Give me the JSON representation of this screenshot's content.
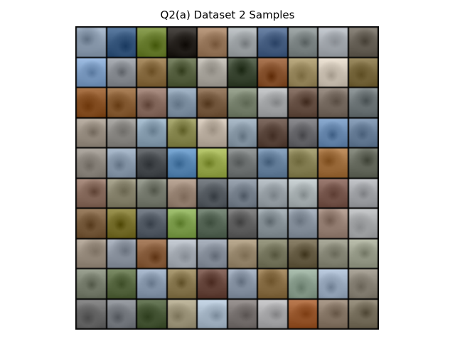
{
  "figure": {
    "title": "Q2(a) Dataset 2 Samples"
  },
  "grid": {
    "rows": 10,
    "cols": 10,
    "tiles": [
      [
        "#8d9db0",
        "#3a5a80",
        "#6b7f32",
        "#2a2622",
        "#9a7a5e",
        "#a0a5a8",
        "#4a6285",
        "#808888",
        "#a5aab0",
        "#6a645a"
      ],
      [
        "#7d9cc2",
        "#8a8e94",
        "#8a6e44",
        "#5a6444",
        "#aaa69e",
        "#3e4a36",
        "#8a5632",
        "#9a8a60",
        "#ccc2b4",
        "#7a6a40"
      ],
      [
        "#8a5428",
        "#8a6038",
        "#8a6e62",
        "#8294a6",
        "#7a5e44",
        "#7a8470",
        "#a6a8aa",
        "#6a5448",
        "#7a6e64",
        "#70787a"
      ],
      [
        "#9a9084",
        "#8c8a86",
        "#8aa0b2",
        "#8a8a52",
        "#bcb0a2",
        "#8a9aa8",
        "#5e4a40",
        "#6a6a6e",
        "#6a8ab0",
        "#6a809a"
      ],
      [
        "#8e8880",
        "#8a9aac",
        "#4a4e52",
        "#5a88b4",
        "#98a84e",
        "#747878",
        "#6a84a0",
        "#8a8458",
        "#a07040",
        "#6a6e62"
      ],
      [
        "#8a6e60",
        "#8a8670",
        "#7a7e72",
        "#9a8676",
        "#5a6066",
        "#7a8490",
        "#9aa2a8",
        "#aab2b4",
        "#7a5a50",
        "#a2a4a8"
      ],
      [
        "#7a5e40",
        "#7a7230",
        "#58606a",
        "#80a050",
        "#5a6a5a",
        "#646464",
        "#8a949a",
        "#8a94a0",
        "#9a8478",
        "#a6a8aa"
      ],
      [
        "#9a8e80",
        "#8e96a2",
        "#8a6040",
        "#a6acb4",
        "#8a929e",
        "#9a8a70",
        "#7a7a62",
        "#6a6048",
        "#8a8a7a",
        "#9a9e8c"
      ],
      [
        "#7a8070",
        "#5a6a44",
        "#8a9aae",
        "#8a7a52",
        "#6a4a40",
        "#8a96a6",
        "#8a7048",
        "#8a9e8e",
        "#9aaabe",
        "#8a8478"
      ],
      [
        "#6a6a6a",
        "#7a7e84",
        "#4a5a3a",
        "#a0987e",
        "#a6b6c6",
        "#7a7472",
        "#aaaaac",
        "#9a5a30",
        "#8a7a6a",
        "#7a7260"
      ]
    ]
  }
}
